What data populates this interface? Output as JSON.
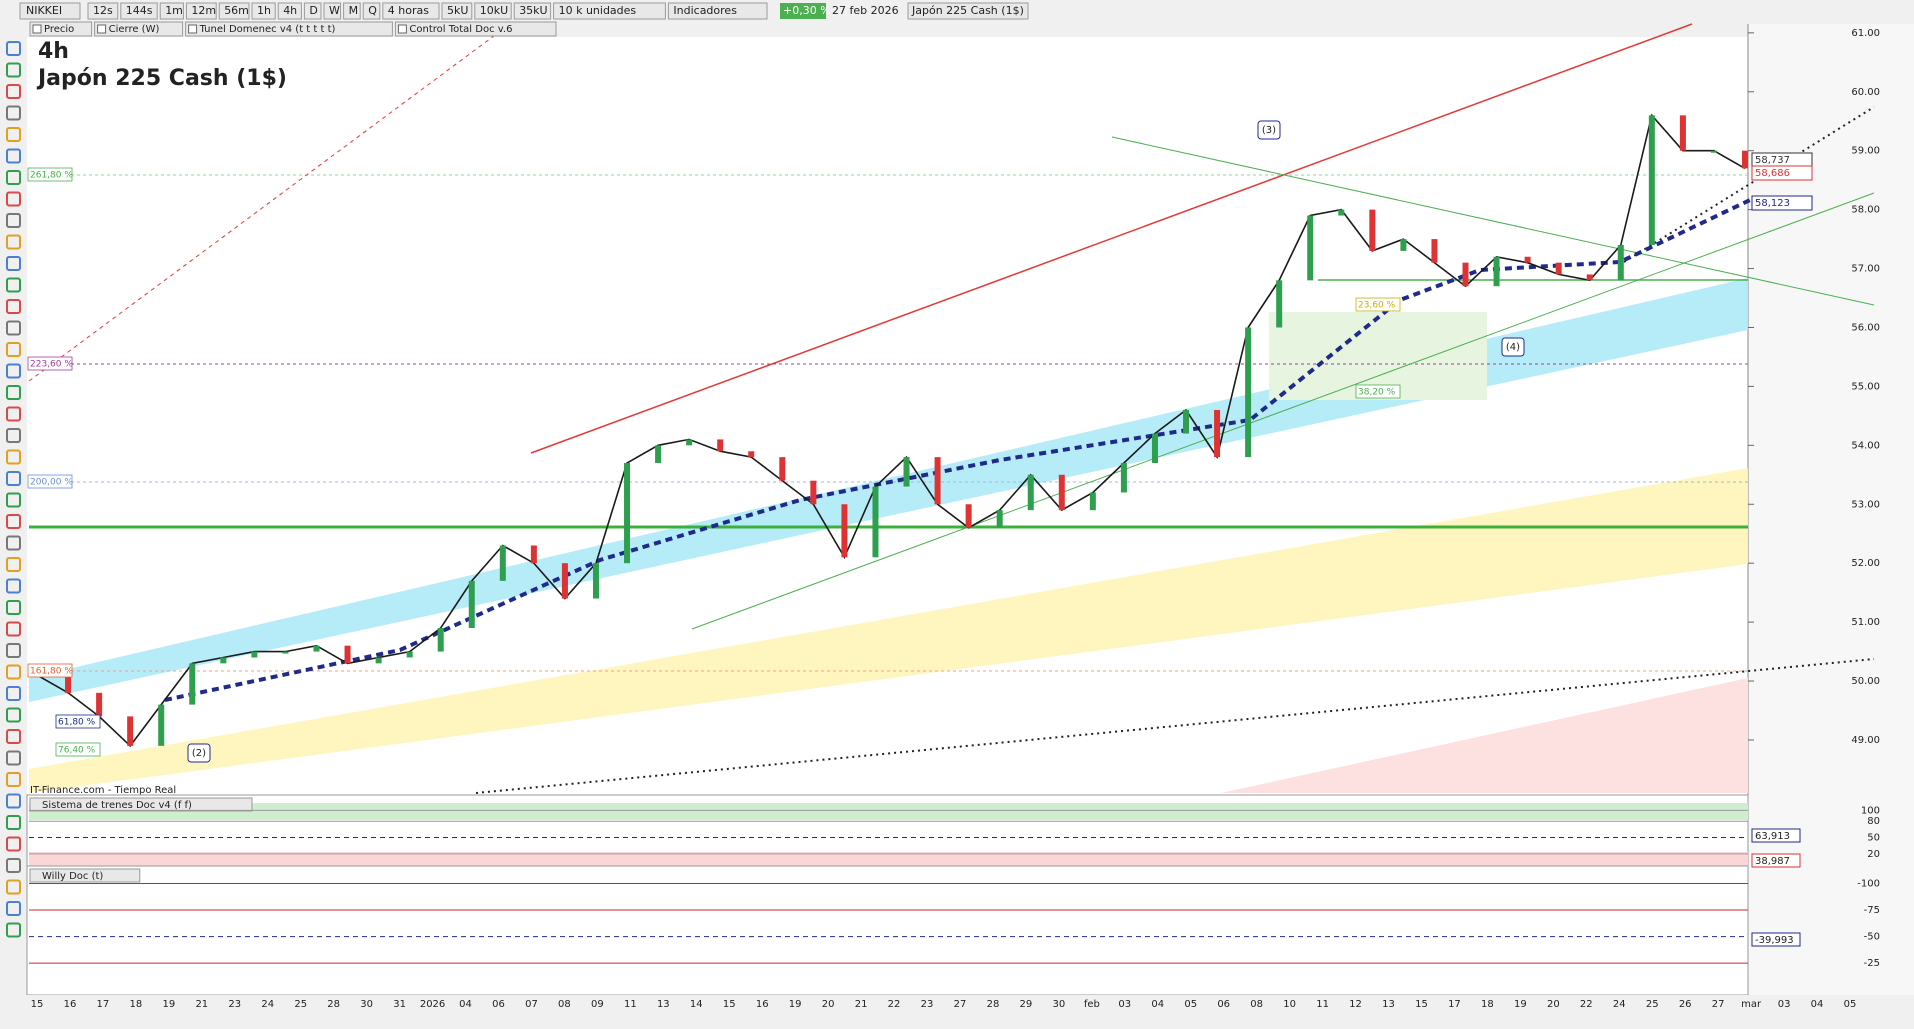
{
  "toolbar": {
    "symbol": "NIKKEI",
    "items": [
      "12s",
      "144s",
      "1m",
      "12m",
      "56m",
      "1h",
      "4h",
      "D",
      "W",
      "M",
      "Q",
      "4 horas",
      "5kU",
      "10kU",
      "35kU",
      "10 k unidades",
      "Indicadores"
    ],
    "change": "+0,30 %",
    "date": "27 feb 2026",
    "instrument": "Japón 225 Cash (1$)"
  },
  "overlays": [
    "Precio",
    "Cierre (W)",
    "Tunel Domenec v4 (t t t t t)",
    "Control Total Doc v.6"
  ],
  "header": {
    "timeframe": "4h",
    "name": "Japón 225 Cash (1$)"
  },
  "source": "IT-Finance.com - Tiempo Real",
  "fib_labels": [
    "261,80 %",
    "223,60 %",
    "200,00 %",
    "161,80 %",
    "61,80 %",
    "76,40 %",
    "38,20 %",
    "23,60 %"
  ],
  "waves": [
    "(2)",
    "(3)",
    "(4)"
  ],
  "axis_labels": [
    "58,737",
    "58,686",
    "58,123"
  ],
  "chart_data": {
    "type": "line",
    "ylim": [
      48.1,
      61.15
    ],
    "yticks": [
      {
        "value": 49,
        "label": "49.00"
      },
      {
        "value": 50,
        "label": "50.00"
      },
      {
        "value": 51,
        "label": "51.00"
      },
      {
        "value": 52,
        "label": "52.00"
      },
      {
        "value": 53,
        "label": "53.00"
      },
      {
        "value": 54,
        "label": "54.00"
      },
      {
        "value": 55,
        "label": "55.00"
      },
      {
        "value": 56,
        "label": "56.00"
      },
      {
        "value": 57,
        "label": "57.00"
      },
      {
        "value": 58,
        "label": "58.00"
      },
      {
        "value": 59,
        "label": "59.00"
      },
      {
        "value": 60,
        "label": "60.00"
      },
      {
        "value": 61,
        "label": "61.00"
      }
    ],
    "categories": [
      "15",
      "16",
      "17",
      "18",
      "19",
      "21",
      "23",
      "24",
      "25",
      "28",
      "30",
      "31",
      "2026",
      "04",
      "06",
      "07",
      "08",
      "09",
      "11",
      "13",
      "14",
      "15",
      "16",
      "19",
      "20",
      "21",
      "22",
      "23",
      "27",
      "28",
      "29",
      "30",
      "feb",
      "03",
      "04",
      "05",
      "06",
      "08",
      "10",
      "11",
      "12",
      "13",
      "15",
      "17",
      "18",
      "19",
      "20",
      "22",
      "24",
      "25",
      "26",
      "27",
      "mar",
      "03",
      "04",
      "05"
    ],
    "series": [
      {
        "color": "#1a1a1a",
        "values": [
          50.1,
          49.8,
          49.4,
          48.9,
          49.6,
          50.3,
          50.4,
          50.5,
          50.5,
          50.6,
          50.3,
          50.4,
          50.5,
          50.9,
          51.7,
          52.3,
          52.0,
          51.4,
          52.0,
          53.7,
          54.0,
          54.1,
          53.9,
          53.8,
          53.4,
          53.0,
          52.1,
          53.3,
          53.8,
          53.0,
          52.6,
          52.9,
          53.5,
          52.9,
          53.2,
          53.7,
          54.2,
          54.6,
          53.8,
          56.0,
          56.8,
          57.9,
          58.0,
          57.3,
          57.5,
          57.1,
          56.7,
          57.2,
          57.1,
          56.9,
          56.8,
          57.4,
          59.6,
          59.0,
          59.0,
          58.7
        ]
      }
    ]
  },
  "panels": [
    {
      "title": "Sistema de trenes Doc v4 (f f)",
      "ylim": [
        5,
        108
      ],
      "yticks": [
        20,
        50,
        80,
        100
      ],
      "labels": [
        "63,913",
        "38,987"
      ]
    },
    {
      "title": "Willy Doc (t)",
      "ylim": [
        5,
        -108
      ],
      "yticks": [
        -25,
        -50,
        -75,
        -100
      ],
      "labels": [
        "-39,993"
      ]
    }
  ]
}
